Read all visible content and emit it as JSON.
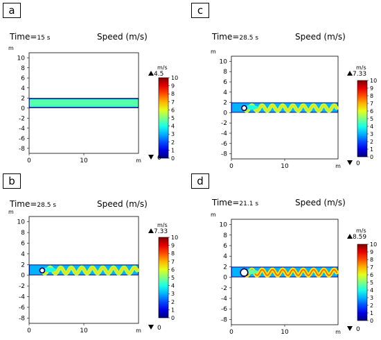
{
  "panels": [
    {
      "label": "a",
      "time_label": "Time=",
      "time_value": "15 s",
      "title": "Speed (m/s)",
      "y_unit": "m",
      "x_unit": "m",
      "colorbar": {
        "unit": "m/s",
        "max_label": "4.5",
        "min_label": "0",
        "ticks": [
          "10",
          "9",
          "8",
          "7",
          "6",
          "5",
          "4",
          "3",
          "2",
          "1",
          "0"
        ]
      }
    },
    {
      "label": "c",
      "time_label": "Time=",
      "time_value": "28.5 s",
      "title": "Speed (m/s)",
      "y_unit": "m",
      "x_unit": "m",
      "colorbar": {
        "unit": "m/s",
        "max_label": "7.33",
        "min_label": "0",
        "ticks": [
          "10",
          "9",
          "8",
          "7",
          "6",
          "5",
          "4",
          "3",
          "2",
          "1",
          "0"
        ]
      }
    },
    {
      "label": "b",
      "time_label": "Time=",
      "time_value": "28.5 s",
      "title": "Speed (m/s)",
      "y_unit": "m",
      "x_unit": "m",
      "colorbar": {
        "unit": "m/s",
        "max_label": "7.33",
        "min_label": "0",
        "ticks": [
          "10",
          "9",
          "8",
          "7",
          "6",
          "5",
          "4",
          "3",
          "2",
          "1",
          "0"
        ]
      }
    },
    {
      "label": "d",
      "time_label": "Time=",
      "time_value": "21.1 s",
      "title": "Speed (m/s)",
      "y_unit": "m",
      "x_unit": "m",
      "colorbar": {
        "unit": "m/s",
        "max_label": "8.59",
        "min_label": "0",
        "ticks": [
          "10",
          "9",
          "8",
          "7",
          "6",
          "5",
          "4",
          "3",
          "2",
          "1",
          "0"
        ]
      }
    }
  ],
  "chart_data": [
    {
      "type": "heatmap",
      "panel": "a",
      "time_s": 15,
      "max_speed": 4.5,
      "min_speed": 0,
      "colorbar_range": [
        0,
        10
      ],
      "xlim": [
        0,
        20
      ],
      "ylim": [
        -9,
        11
      ],
      "x_ticks": [
        "0",
        "10"
      ],
      "y_ticks": [
        "10",
        "8",
        "6",
        "4",
        "2",
        "0",
        "-2",
        "-4",
        "-6",
        "-8"
      ],
      "domain": {
        "x": [
          0,
          20
        ],
        "y": [
          0,
          2
        ]
      },
      "pattern": "uniform"
    },
    {
      "type": "heatmap",
      "panel": "c",
      "time_s": 28.5,
      "max_speed": 7.33,
      "min_speed": 0,
      "colorbar_range": [
        0,
        10
      ],
      "xlim": [
        0,
        20
      ],
      "ylim": [
        -9,
        11
      ],
      "x_ticks": [
        "0",
        "10"
      ],
      "y_ticks": [
        "10",
        "8",
        "6",
        "4",
        "2",
        "0",
        "-2",
        "-4",
        "-6",
        "-8"
      ],
      "domain": {
        "x": [
          0,
          20
        ],
        "y": [
          0,
          2
        ]
      },
      "pattern": "vortex-street"
    },
    {
      "type": "heatmap",
      "panel": "b",
      "time_s": 28.5,
      "max_speed": 7.33,
      "min_speed": 0,
      "colorbar_range": [
        0,
        10
      ],
      "xlim": [
        0,
        20
      ],
      "ylim": [
        -9,
        11
      ],
      "x_ticks": [
        "0",
        "10"
      ],
      "y_ticks": [
        "10",
        "8",
        "6",
        "4",
        "2",
        "0",
        "-2",
        "-4",
        "-6",
        "-8"
      ],
      "domain": {
        "x": [
          0,
          20
        ],
        "y": [
          0,
          2
        ]
      },
      "pattern": "vortex-street"
    },
    {
      "type": "heatmap",
      "panel": "d",
      "time_s": 21.1,
      "max_speed": 8.59,
      "min_speed": 0,
      "colorbar_range": [
        0,
        10
      ],
      "xlim": [
        0,
        20
      ],
      "ylim": [
        -9,
        11
      ],
      "x_ticks": [
        "0",
        "10"
      ],
      "y_ticks": [
        "10",
        "8",
        "6",
        "4",
        "2",
        "0",
        "-2",
        "-4",
        "-6",
        "-8"
      ],
      "domain": {
        "x": [
          0,
          20
        ],
        "y": [
          0,
          2
        ]
      },
      "pattern": "vortex-street"
    }
  ]
}
